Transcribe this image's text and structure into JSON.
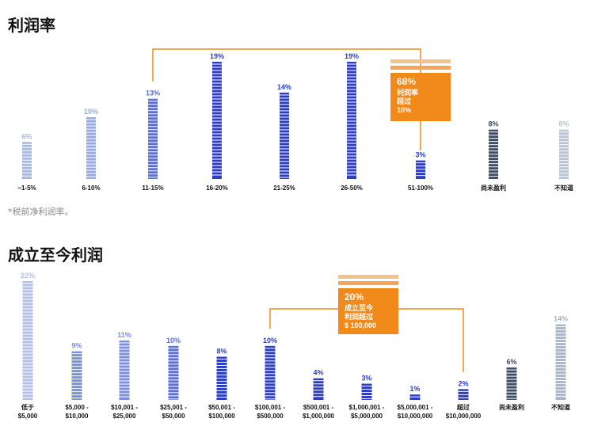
{
  "chart_data": [
    {
      "type": "bar",
      "title": "利润率",
      "footnote": "*税前净利润率。",
      "categories": [
        "~1-5%",
        "6-10%",
        "11-15%",
        "16-20%",
        "21-25%",
        "26-50%",
        "51-100%",
        "尚未盈利",
        "不知道"
      ],
      "values": [
        6,
        10,
        13,
        19,
        14,
        19,
        3,
        8,
        8
      ],
      "value_labels": [
        "6%",
        "10%",
        "13%",
        "19%",
        "14%",
        "19%",
        "3%",
        "8%",
        "8%"
      ],
      "colors": [
        "#a9b8e0",
        "#98a9dc",
        "#5a6fd0",
        "#2c3fc4",
        "#2c3fc4",
        "#2c3fc4",
        "#2c3fc4",
        "#3e4d63",
        "#b9c5d6"
      ],
      "ylim": [
        0,
        19
      ],
      "callout": {
        "line1": "68%",
        "line2": "利润率",
        "line3": "超过",
        "line4": "10%",
        "color": "#f28a1b",
        "bracket_from": "11-15%",
        "bracket_to": "51-100%"
      }
    },
    {
      "type": "bar",
      "title": "成立至今利润",
      "categories": [
        "低于\n$5,000",
        "$5,000 -\n$10,000",
        "$10,001 -\n$25,000",
        "$25,001 -\n$50,000",
        "$50,001 -\n$100,000",
        "$100,001 -\n$500,000",
        "$500,001 -\n$1,000,000",
        "$1,000,001 -\n$5,000,000",
        "$5,000,001 -\n$10,000,000",
        "超过\n$10,000,000",
        "尚未盈利",
        "不知道"
      ],
      "values": [
        22,
        9,
        11,
        10,
        8,
        10,
        4,
        3,
        1,
        2,
        6,
        14
      ],
      "value_labels": [
        "22%",
        "9%",
        "11%",
        "10%",
        "8%",
        "10%",
        "4%",
        "3%",
        "1%",
        "2%",
        "6%",
        "14%"
      ],
      "colors": [
        "#b3c0e6",
        "#7d8fd8",
        "#7d8fd8",
        "#5c70d0",
        "#2c3fc4",
        "#2c3fc4",
        "#2c3fc4",
        "#2c3fc4",
        "#2c3fc4",
        "#2c3fc4",
        "#3e4d63",
        "#a8b6cc"
      ],
      "ylim": [
        0,
        22
      ],
      "callout": {
        "line1": "20%",
        "line2": "成立至今",
        "line3": "利润超过",
        "line4": "$ 100,000",
        "color": "#f28a1b",
        "bracket_from": "$100,001 -\n$500,000",
        "bracket_to": "超过\n$10,000,000"
      }
    }
  ]
}
